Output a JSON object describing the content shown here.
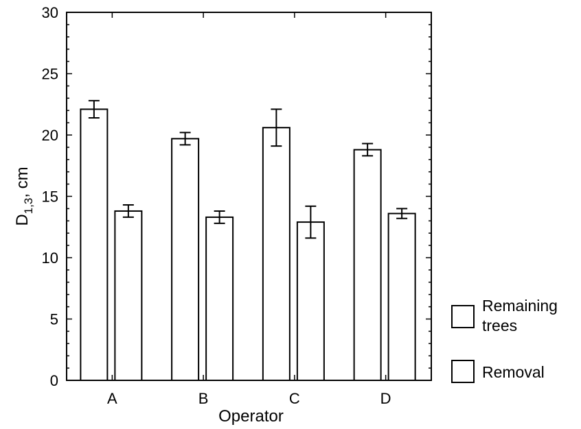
{
  "chart_data": {
    "type": "bar",
    "xlabel": "Operator",
    "ylabel": {
      "main": "D",
      "sub": "1,3",
      "suffix": ", cm"
    },
    "ylim": [
      0,
      30
    ],
    "yticks": [
      0,
      5,
      10,
      15,
      20,
      25,
      30
    ],
    "categories": [
      "A",
      "B",
      "C",
      "D"
    ],
    "grid": false,
    "legend_position": "right",
    "series": [
      {
        "name": "Remaining trees",
        "legend_lines": [
          "Remaining",
          "trees"
        ],
        "values": [
          22.1,
          19.7,
          20.6,
          18.8
        ],
        "errors": [
          0.7,
          0.5,
          1.5,
          0.5
        ],
        "fill": "#ffffff"
      },
      {
        "name": "Removal",
        "legend_lines": [
          "Removal"
        ],
        "values": [
          13.8,
          13.3,
          12.9,
          13.6
        ],
        "errors": [
          0.5,
          0.5,
          1.3,
          0.4
        ],
        "fill": "#ffffff"
      }
    ]
  }
}
